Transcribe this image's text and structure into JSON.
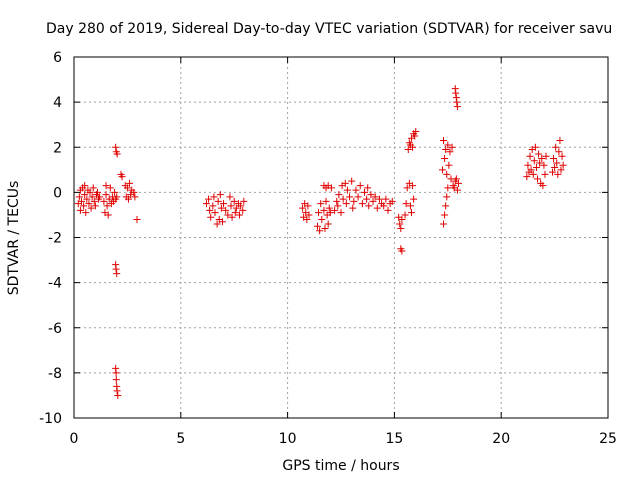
{
  "chart_data": {
    "type": "scatter",
    "title": "Day 280 of 2019, Sidereal Day-to-day VTEC variation (SDTVAR) for receiver savu",
    "xlabel": "GPS time / hours",
    "ylabel": "SDTVAR / TECUs",
    "xlim": [
      0,
      25
    ],
    "ylim": [
      -10,
      6
    ],
    "xticks": [
      0,
      5,
      10,
      15,
      20,
      25
    ],
    "yticks": [
      -10,
      -8,
      -6,
      -4,
      -2,
      0,
      2,
      4,
      6
    ],
    "xtick_labels": [
      "0",
      "5",
      "10",
      "15",
      "20",
      "25"
    ],
    "ytick_labels": [
      "-10",
      "-8",
      "-6",
      "-4",
      "-2",
      "0",
      "2",
      "4",
      "6"
    ],
    "grid": true,
    "marker": "plus",
    "color": "#e00000",
    "series": [
      {
        "name": "SDTVAR",
        "points": [
          [
            0.2,
            -0.5
          ],
          [
            0.25,
            -0.2
          ],
          [
            0.3,
            0.1
          ],
          [
            0.3,
            -0.8
          ],
          [
            0.35,
            -0.4
          ],
          [
            0.4,
            0.2
          ],
          [
            0.45,
            -0.6
          ],
          [
            0.5,
            -0.1
          ],
          [
            0.5,
            0.3
          ],
          [
            0.55,
            -0.9
          ],
          [
            0.6,
            -0.3
          ],
          [
            0.65,
            0.1
          ],
          [
            0.7,
            -0.5
          ],
          [
            0.75,
            0.0
          ],
          [
            0.8,
            -0.7
          ],
          [
            0.85,
            -0.2
          ],
          [
            0.9,
            0.2
          ],
          [
            0.95,
            -0.4
          ],
          [
            1.0,
            -0.6
          ],
          [
            1.05,
            -0.1
          ],
          [
            1.1,
            0.0
          ],
          [
            1.15,
            -0.3
          ],
          [
            1.2,
            -0.2
          ],
          [
            1.4,
            -0.4
          ],
          [
            1.45,
            -0.9
          ],
          [
            1.5,
            -0.1
          ],
          [
            1.5,
            0.3
          ],
          [
            1.55,
            -0.6
          ],
          [
            1.6,
            -1.0
          ],
          [
            1.65,
            -0.3
          ],
          [
            1.7,
            0.2
          ],
          [
            1.75,
            -0.5
          ],
          [
            1.8,
            -0.2
          ],
          [
            1.85,
            -0.4
          ],
          [
            1.9,
            0.0
          ],
          [
            1.95,
            -0.3
          ],
          [
            2.0,
            -0.2
          ],
          [
            1.95,
            2.0
          ],
          [
            1.98,
            1.8
          ],
          [
            2.02,
            1.7
          ],
          [
            1.95,
            -3.2
          ],
          [
            1.97,
            -3.4
          ],
          [
            2.0,
            -3.6
          ],
          [
            1.95,
            -7.8
          ],
          [
            1.97,
            -8.0
          ],
          [
            1.98,
            -8.3
          ],
          [
            2.0,
            -8.6
          ],
          [
            2.02,
            -8.8
          ],
          [
            2.05,
            -9.0
          ],
          [
            2.2,
            0.8
          ],
          [
            2.25,
            0.7
          ],
          [
            2.4,
            0.3
          ],
          [
            2.45,
            -0.2
          ],
          [
            2.5,
            0.2
          ],
          [
            2.55,
            -0.3
          ],
          [
            2.6,
            0.4
          ],
          [
            2.65,
            -0.1
          ],
          [
            2.7,
            0.1
          ],
          [
            2.8,
            0.0
          ],
          [
            2.85,
            -0.2
          ],
          [
            2.95,
            -1.2
          ],
          [
            6.2,
            -0.5
          ],
          [
            6.3,
            -0.3
          ],
          [
            6.35,
            -0.8
          ],
          [
            6.4,
            -1.1
          ],
          [
            6.5,
            -0.6
          ],
          [
            6.55,
            -0.2
          ],
          [
            6.6,
            -0.9
          ],
          [
            6.7,
            -1.4
          ],
          [
            6.75,
            -0.4
          ],
          [
            6.8,
            -1.2
          ],
          [
            6.85,
            -0.1
          ],
          [
            6.9,
            -0.7
          ],
          [
            6.95,
            -1.3
          ],
          [
            7.0,
            -0.5
          ],
          [
            7.1,
            -0.8
          ],
          [
            7.2,
            -1.0
          ],
          [
            7.3,
            -0.2
          ],
          [
            7.35,
            -0.6
          ],
          [
            7.4,
            -1.1
          ],
          [
            7.5,
            -0.4
          ],
          [
            7.55,
            -0.9
          ],
          [
            7.6,
            -0.7
          ],
          [
            7.7,
            -0.5
          ],
          [
            7.75,
            -1.0
          ],
          [
            7.8,
            -0.6
          ],
          [
            7.9,
            -0.8
          ],
          [
            7.95,
            -0.4
          ],
          [
            10.7,
            -0.7
          ],
          [
            10.75,
            -1.1
          ],
          [
            10.8,
            -0.5
          ],
          [
            10.85,
            -0.9
          ],
          [
            10.9,
            -1.2
          ],
          [
            10.95,
            -0.6
          ],
          [
            11.0,
            -1.0
          ],
          [
            11.4,
            -1.5
          ],
          [
            11.45,
            -0.9
          ],
          [
            11.5,
            -1.7
          ],
          [
            11.55,
            -0.5
          ],
          [
            11.6,
            -1.2
          ],
          [
            11.7,
            -0.8
          ],
          [
            11.75,
            -1.6
          ],
          [
            11.8,
            -0.4
          ],
          [
            11.85,
            -1.0
          ],
          [
            11.9,
            -1.4
          ],
          [
            11.95,
            -0.7
          ],
          [
            12.0,
            -0.9
          ],
          [
            11.7,
            0.3
          ],
          [
            11.8,
            0.2
          ],
          [
            11.9,
            0.3
          ],
          [
            12.05,
            0.2
          ],
          [
            12.2,
            -0.8
          ],
          [
            12.3,
            -0.4
          ],
          [
            12.35,
            -0.6
          ],
          [
            12.4,
            -0.1
          ],
          [
            12.5,
            -0.9
          ],
          [
            12.55,
            0.3
          ],
          [
            12.6,
            -0.3
          ],
          [
            12.7,
            0.4
          ],
          [
            12.75,
            -0.5
          ],
          [
            12.8,
            0.1
          ],
          [
            12.9,
            -0.2
          ],
          [
            13.0,
            0.5
          ],
          [
            13.05,
            -0.7
          ],
          [
            13.1,
            -0.4
          ],
          [
            13.2,
            0.1
          ],
          [
            13.3,
            -0.2
          ],
          [
            13.4,
            0.3
          ],
          [
            13.5,
            -0.5
          ],
          [
            13.6,
            0.0
          ],
          [
            13.7,
            -0.3
          ],
          [
            13.75,
            0.2
          ],
          [
            13.8,
            -0.6
          ],
          [
            13.9,
            -0.1
          ],
          [
            14.0,
            -0.4
          ],
          [
            14.1,
            -0.2
          ],
          [
            14.2,
            -0.7
          ],
          [
            14.3,
            -0.3
          ],
          [
            14.4,
            -0.5
          ],
          [
            14.5,
            -0.6
          ],
          [
            14.6,
            -0.3
          ],
          [
            14.7,
            -0.8
          ],
          [
            14.8,
            -0.5
          ],
          [
            14.9,
            -0.4
          ],
          [
            15.2,
            -1.1
          ],
          [
            15.25,
            -1.4
          ],
          [
            15.3,
            -1.6
          ],
          [
            15.35,
            -1.2
          ],
          [
            15.3,
            -2.5
          ],
          [
            15.35,
            -2.6
          ],
          [
            15.5,
            -1.0
          ],
          [
            15.55,
            -0.5
          ],
          [
            15.6,
            0.2
          ],
          [
            15.7,
            0.4
          ],
          [
            15.75,
            -0.6
          ],
          [
            15.8,
            -0.9
          ],
          [
            15.85,
            0.3
          ],
          [
            15.9,
            -0.3
          ],
          [
            15.65,
            1.9
          ],
          [
            15.7,
            2.2
          ],
          [
            15.75,
            2.1
          ],
          [
            15.8,
            2.4
          ],
          [
            15.85,
            2.0
          ],
          [
            15.9,
            2.6
          ],
          [
            15.95,
            2.5
          ],
          [
            16.0,
            2.7
          ],
          [
            17.3,
            -1.4
          ],
          [
            17.35,
            -1.0
          ],
          [
            17.4,
            -0.6
          ],
          [
            17.45,
            -0.2
          ],
          [
            17.5,
            0.2
          ],
          [
            17.25,
            1.0
          ],
          [
            17.3,
            2.3
          ],
          [
            17.35,
            1.5
          ],
          [
            17.4,
            1.9
          ],
          [
            17.45,
            0.8
          ],
          [
            17.5,
            2.1
          ],
          [
            17.55,
            1.2
          ],
          [
            17.6,
            1.8
          ],
          [
            17.65,
            0.6
          ],
          [
            17.7,
            2.0
          ],
          [
            17.75,
            0.3
          ],
          [
            17.8,
            0.2
          ],
          [
            17.85,
            0.5
          ],
          [
            17.9,
            0.6
          ],
          [
            17.95,
            0.1
          ],
          [
            18.0,
            0.4
          ],
          [
            17.85,
            4.6
          ],
          [
            17.87,
            4.4
          ],
          [
            17.9,
            4.2
          ],
          [
            17.92,
            4.0
          ],
          [
            17.95,
            3.8
          ],
          [
            21.2,
            0.7
          ],
          [
            21.25,
            1.2
          ],
          [
            21.3,
            0.9
          ],
          [
            21.35,
            1.6
          ],
          [
            21.4,
            1.0
          ],
          [
            21.45,
            1.9
          ],
          [
            21.5,
            0.8
          ],
          [
            21.55,
            1.4
          ],
          [
            21.6,
            2.0
          ],
          [
            21.65,
            1.1
          ],
          [
            21.7,
            0.6
          ],
          [
            21.75,
            1.7
          ],
          [
            21.8,
            1.3
          ],
          [
            21.85,
            0.4
          ],
          [
            21.9,
            1.5
          ],
          [
            21.95,
            0.3
          ],
          [
            22.0,
            1.2
          ],
          [
            22.05,
            0.8
          ],
          [
            22.1,
            1.6
          ],
          [
            22.4,
            0.9
          ],
          [
            22.45,
            1.5
          ],
          [
            22.5,
            1.1
          ],
          [
            22.55,
            2.0
          ],
          [
            22.6,
            1.3
          ],
          [
            22.65,
            0.8
          ],
          [
            22.7,
            1.8
          ],
          [
            22.75,
            2.3
          ],
          [
            22.8,
            1.0
          ],
          [
            22.85,
            1.6
          ],
          [
            22.9,
            1.2
          ]
        ]
      }
    ]
  }
}
